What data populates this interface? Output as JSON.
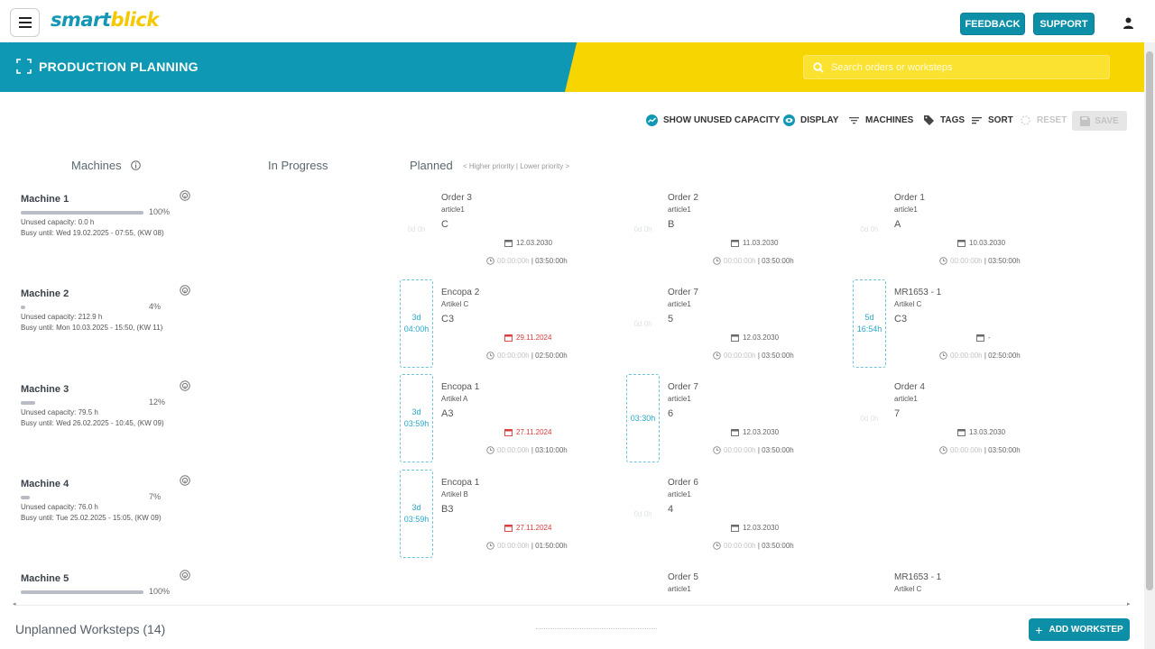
{
  "header": {
    "logo_part1": "smart",
    "logo_part2": "blick",
    "feedback_label": "FEEDBACK",
    "support_label": "SUPPORT"
  },
  "banner": {
    "title": "PRODUCTION PLANNING",
    "search_placeholder": "Search orders or worksteps"
  },
  "toolbar": {
    "show_unused": "SHOW UNUSED CAPACITY",
    "display": "DISPLAY",
    "machines": "MACHINES",
    "tags": "TAGS",
    "sort": "SORT",
    "reset": "RESET",
    "save": "SAVE"
  },
  "columns": {
    "machines": "Machines",
    "in_progress": "In Progress",
    "planned": "Planned",
    "priority_hint": "< Higher priority | Lower priority >"
  },
  "machines": [
    {
      "name": "Machine 1",
      "pct": "100%",
      "fill": 1.0,
      "unused": "Unused capacity: 0.0 h",
      "busy": "Busy until: Wed 19.02.2025 - 07:55, (KW 08)"
    },
    {
      "name": "Machine 2",
      "pct": "4%",
      "fill": 0.04,
      "unused": "Unused capacity: 212.9 h",
      "busy": "Busy until: Mon 10.03.2025 - 15:50, (KW 11)"
    },
    {
      "name": "Machine 3",
      "pct": "12%",
      "fill": 0.12,
      "unused": "Unused capacity: 79.5 h",
      "busy": "Busy until: Wed 26.02.2025 - 10:45, (KW 09)"
    },
    {
      "name": "Machine 4",
      "pct": "7%",
      "fill": 0.07,
      "unused": "Unused capacity: 76.0 h",
      "busy": "Busy until: Tue 25.02.2025 - 15:05, (KW 09)"
    },
    {
      "name": "Machine 5",
      "pct": "100%",
      "fill": 1.0,
      "unused": "",
      "busy": ""
    }
  ],
  "cards": [
    {
      "title": "Order 3",
      "article": "article1",
      "code": "C",
      "date": "12.03.2030",
      "date_red": false,
      "time_a": "00:00:00h",
      "time_b": "03:50:00h",
      "dur1": "0d 0h",
      "dur2": "",
      "dashed": false
    },
    {
      "title": "Order 2",
      "article": "article1",
      "code": "B",
      "date": "11.03.2030",
      "date_red": false,
      "time_a": "00:00:00h",
      "time_b": "03:50:00h",
      "dur1": "0d 0h",
      "dur2": "",
      "dashed": false
    },
    {
      "title": "Order 1",
      "article": "article1",
      "code": "A",
      "date": "10.03.2030",
      "date_red": false,
      "time_a": "00:00:00h",
      "time_b": "03:50:00h",
      "dur1": "0d 0h",
      "dur2": "",
      "dashed": false
    },
    {
      "title": "Encopa 2",
      "article": "Artikel C",
      "code": "C3",
      "date": "29.11.2024",
      "date_red": true,
      "time_a": "00:00:00h",
      "time_b": "02:50:00h",
      "dur1": "3d",
      "dur2": "04:00h",
      "dashed": true
    },
    {
      "title": "Order 7",
      "article": "article1",
      "code": "5",
      "date": "12.03.2030",
      "date_red": false,
      "time_a": "00:00:00h",
      "time_b": "03:50:00h",
      "dur1": "0d 0h",
      "dur2": "",
      "dashed": false
    },
    {
      "title": "MR1653 - 1",
      "article": "Artikel C",
      "code": "C3",
      "date": "-",
      "date_red": false,
      "time_a": "00:00:00h",
      "time_b": "02:50:00h",
      "dur1": "5d",
      "dur2": "16:54h",
      "dashed": true
    },
    {
      "title": "Encopa 1",
      "article": "Artikel A",
      "code": "A3",
      "date": "27.11.2024",
      "date_red": true,
      "time_a": "00:00:00h",
      "time_b": "03:10:00h",
      "dur1": "3d",
      "dur2": "03:59h",
      "dashed": true
    },
    {
      "title": "Order 7",
      "article": "article1",
      "code": "6",
      "date": "12.03.2030",
      "date_red": false,
      "time_a": "00:00:00h",
      "time_b": "03:50:00h",
      "dur1": "03:30h",
      "dur2": "",
      "dashed": true
    },
    {
      "title": "Order 4",
      "article": "article1",
      "code": "7",
      "date": "13.03.2030",
      "date_red": false,
      "time_a": "00:00:00h",
      "time_b": "03:50:00h",
      "dur1": "0d 0h",
      "dur2": "",
      "dashed": false
    },
    {
      "title": "Encopa 1",
      "article": "Artikel B",
      "code": "B3",
      "date": "27.11.2024",
      "date_red": true,
      "time_a": "00:00:00h",
      "time_b": "01:50:00h",
      "dur1": "3d",
      "dur2": "03:59h",
      "dashed": true
    },
    {
      "title": "Order 6",
      "article": "article1",
      "code": "4",
      "date": "12.03.2030",
      "date_red": false,
      "time_a": "00:00:00h",
      "time_b": "03:50:00h",
      "dur1": "0d 0h",
      "dur2": "",
      "dashed": false
    },
    {
      "title": "Order 5",
      "article": "article1",
      "code": "",
      "date": "",
      "date_red": false,
      "time_a": "",
      "time_b": "",
      "dur1": "",
      "dur2": "",
      "dashed": false
    },
    {
      "title": "MR1653 - 1",
      "article": "Artikel C",
      "code": "",
      "date": "",
      "date_red": false,
      "time_a": "",
      "time_b": "",
      "dur1": "",
      "dur2": "",
      "dashed": false
    }
  ],
  "footer": {
    "unplanned": "Unplanned Worksteps (14)",
    "add_label": "ADD WORKSTEP"
  },
  "colors": {
    "teal": "#0e98b3",
    "yellow": "#f7d500",
    "button": "#0e8fa8",
    "overdue": "#d93a3a"
  }
}
